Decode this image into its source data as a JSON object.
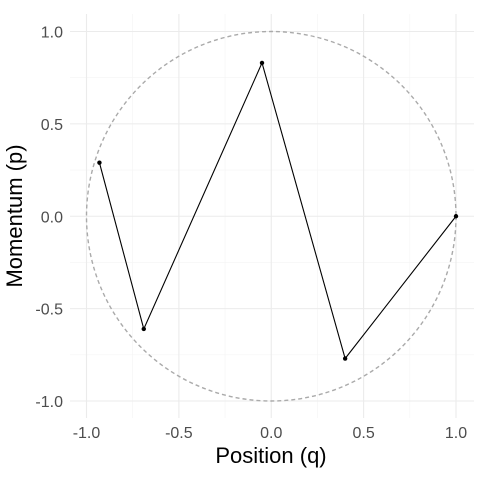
{
  "chart_data": {
    "type": "line",
    "xlabel": "Position (q)",
    "ylabel": "Momentum (p)",
    "xlim": [
      -1.0,
      1.0
    ],
    "ylim": [
      -1.0,
      1.0
    ],
    "x_ticks": [
      -1.0,
      -0.5,
      0.0,
      0.5,
      1.0
    ],
    "x_tick_labels": [
      "-1.0",
      "-0.5",
      "0.0",
      "0.5",
      "1.0"
    ],
    "y_ticks": [
      -1.0,
      -0.5,
      0.0,
      0.5,
      1.0
    ],
    "y_tick_labels": [
      "-1.0",
      "-0.5",
      "0.0",
      "0.5",
      "1.0"
    ],
    "grid": true,
    "reference_circle": {
      "center": [
        0.0,
        0.0
      ],
      "radius": 1.0,
      "style": "dashed",
      "color": "#aaaaaa"
    },
    "series": [
      {
        "points": [
          {
            "x": 1.0,
            "y": 0.0
          },
          {
            "x": 0.4,
            "y": -0.77
          },
          {
            "x": -0.05,
            "y": 0.83
          },
          {
            "x": -0.69,
            "y": -0.61
          },
          {
            "x": -0.93,
            "y": 0.29
          }
        ],
        "color": "#000000"
      }
    ]
  }
}
